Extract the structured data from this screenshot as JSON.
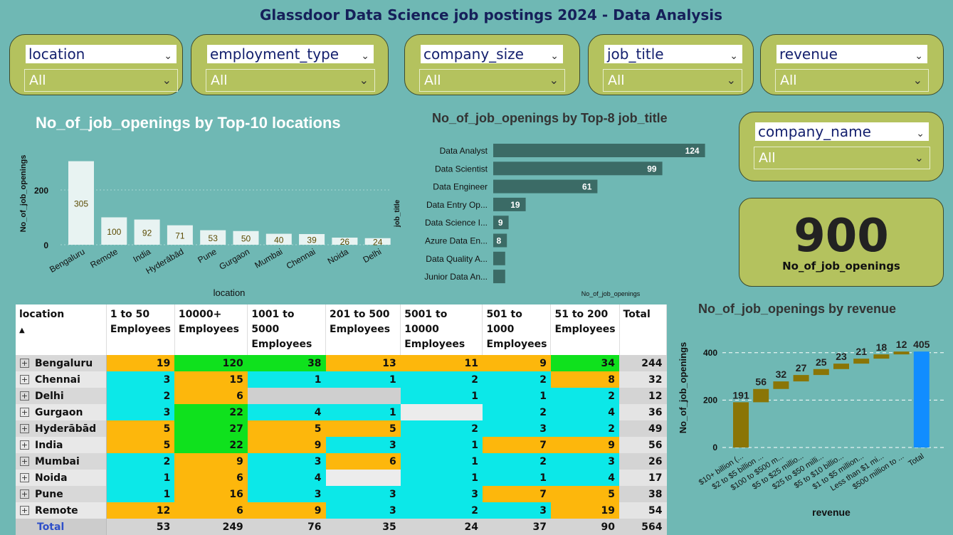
{
  "title": "Glassdoor Data Science job postings 2024 - Data Analysis",
  "slicers": [
    {
      "label": "location",
      "value": "All"
    },
    {
      "label": "employment_type",
      "value": "All"
    },
    {
      "label": "company_size",
      "value": "All"
    },
    {
      "label": "job_title",
      "value": "All"
    },
    {
      "label": "revenue",
      "value": "All"
    }
  ],
  "company_slicer": {
    "label": "company_name",
    "value": "All"
  },
  "kpi": {
    "value": "900",
    "caption": "No_of_job_openings"
  },
  "chart_data": [
    {
      "type": "bar",
      "title": "No_of_job_openings by Top-10 locations",
      "xlabel": "location",
      "ylabel": "No_of_job_openings",
      "categories": [
        "Bengaluru",
        "Remote",
        "India",
        "Hyderābād",
        "Pune",
        "Gurgaon",
        "Mumbai",
        "Chennai",
        "Noida",
        "Delhi"
      ],
      "values": [
        305,
        100,
        92,
        71,
        53,
        50,
        40,
        39,
        26,
        24
      ],
      "yticks": [
        0,
        200
      ],
      "colors": {
        "bar": "#e8f3f2",
        "label": "#5a4a00"
      }
    },
    {
      "type": "bar",
      "orientation": "horizontal",
      "title": "No_of_job_openings by Top-8 job_title",
      "xlabel": "No_of_job_openings",
      "ylabel": "job_title",
      "categories": [
        "Data Analyst",
        "Data Scientist",
        "Data Engineer",
        "Data Entry Op...",
        "Data Science I...",
        "Azure Data En...",
        "Data Quality A...",
        "Junior Data An..."
      ],
      "values": [
        124,
        99,
        61,
        19,
        9,
        8,
        7,
        7
      ],
      "value_labels": [
        "124",
        "99",
        "61",
        "19",
        "9",
        "8",
        "",
        ""
      ],
      "colors": {
        "bar": "#3b6b66"
      }
    },
    {
      "type": "waterfall",
      "title": "No_of_job_openings by revenue",
      "xlabel": "revenue",
      "ylabel": "No_of_job_openings",
      "categories": [
        "$10+ billion (...",
        "$2 to $5 billion ...",
        "$100 to $500 m...",
        "$5 to $25 millio...",
        "$25 to $50 milli...",
        "$5 to $10 billio...",
        "$1 to $5 million...",
        "Less than $1 mi...",
        "$500 million to ...",
        "Total"
      ],
      "values": [
        191,
        56,
        32,
        27,
        25,
        23,
        21,
        18,
        12,
        405
      ],
      "yticks": [
        0,
        200,
        400
      ],
      "colors": {
        "step": "#8a7506",
        "total": "#118dff"
      }
    }
  ],
  "matrix": {
    "headers": [
      "location",
      "1 to 50 Employees",
      "10000+ Employees",
      "1001 to 5000 Employees",
      "201 to 500 Employees",
      "5001 to 10000 Employees",
      "501 to 1000 Employees",
      "51 to 200 Employees",
      "Total"
    ],
    "sort_indicator": "▲",
    "rows": [
      {
        "loc": "Bengaluru",
        "cells": [
          "19",
          "120",
          "38",
          "13",
          "11",
          "9",
          "34"
        ],
        "total": "244"
      },
      {
        "loc": "Chennai",
        "cells": [
          "3",
          "15",
          "1",
          "1",
          "2",
          "2",
          "8"
        ],
        "total": "32"
      },
      {
        "loc": "Delhi",
        "cells": [
          "2",
          "6",
          "",
          "",
          "1",
          "1",
          "2"
        ],
        "total": "12"
      },
      {
        "loc": "Gurgaon",
        "cells": [
          "3",
          "22",
          "4",
          "1",
          "",
          "2",
          "4"
        ],
        "total": "36"
      },
      {
        "loc": "Hyderābād",
        "cells": [
          "5",
          "27",
          "5",
          "5",
          "2",
          "3",
          "2"
        ],
        "total": "49"
      },
      {
        "loc": "India",
        "cells": [
          "5",
          "22",
          "9",
          "3",
          "1",
          "7",
          "9"
        ],
        "total": "56"
      },
      {
        "loc": "Mumbai",
        "cells": [
          "2",
          "9",
          "3",
          "6",
          "1",
          "2",
          "3"
        ],
        "total": "26"
      },
      {
        "loc": "Noida",
        "cells": [
          "1",
          "6",
          "4",
          "",
          "1",
          "1",
          "4"
        ],
        "total": "17"
      },
      {
        "loc": "Pune",
        "cells": [
          "1",
          "16",
          "3",
          "3",
          "3",
          "7",
          "5"
        ],
        "total": "38"
      },
      {
        "loc": "Remote",
        "cells": [
          "12",
          "6",
          "9",
          "3",
          "2",
          "3",
          "19"
        ],
        "total": "54"
      }
    ],
    "total_row": {
      "loc": "Total",
      "cells": [
        "53",
        "249",
        "76",
        "35",
        "24",
        "37",
        "90"
      ],
      "total": "564"
    }
  }
}
